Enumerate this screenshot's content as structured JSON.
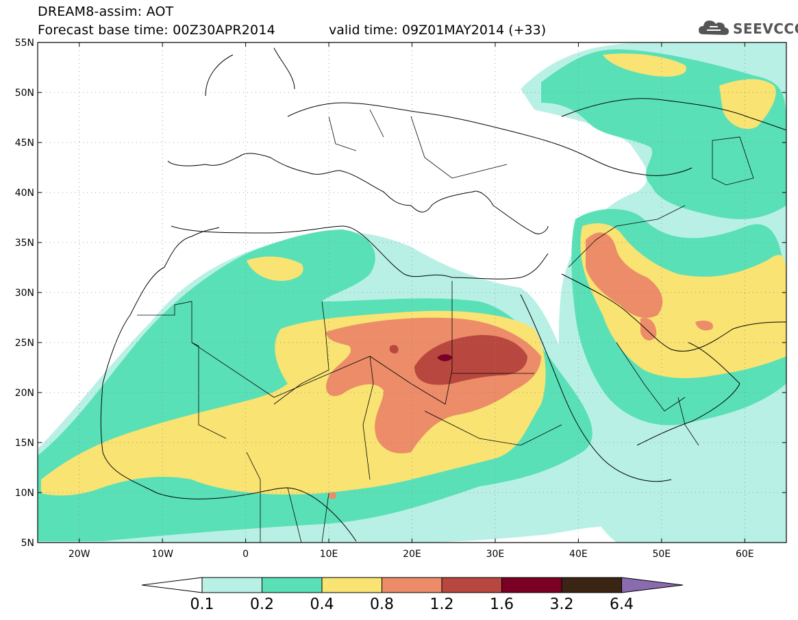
{
  "title": {
    "line1": "DREAM8-assim: AOT",
    "line2": "Forecast base time: 00Z30APR2014",
    "valid": "valid time: 09Z01MAY2014 (+33)"
  },
  "logo": {
    "text": "SEEVCCC",
    "icon": "cloud-logo-icon"
  },
  "map": {
    "extent": {
      "lon": [
        -25,
        65
      ],
      "lat": [
        5,
        55
      ]
    },
    "lat_labels": [
      "55N",
      "50N",
      "45N",
      "40N",
      "35N",
      "30N",
      "25N",
      "20N",
      "15N",
      "10N",
      "5N"
    ],
    "lon_labels": [
      "20W",
      "10W",
      "0",
      "10E",
      "20E",
      "30E",
      "40E",
      "50E",
      "60E"
    ],
    "gridlines": "dotted",
    "variable": "Aerosol optical thickness"
  },
  "colorbar": {
    "levels": [
      "0.1",
      "0.2",
      "0.4",
      "0.8",
      "1.2",
      "1.6",
      "3.2",
      "6.4"
    ],
    "colors": [
      "#b9f0e6",
      "#5ae0b7",
      "#f9e373",
      "#ec8c68",
      "#b8483f",
      "#7a0024",
      "#3a2413",
      "#8b6bb0"
    ],
    "extend": "both"
  }
}
